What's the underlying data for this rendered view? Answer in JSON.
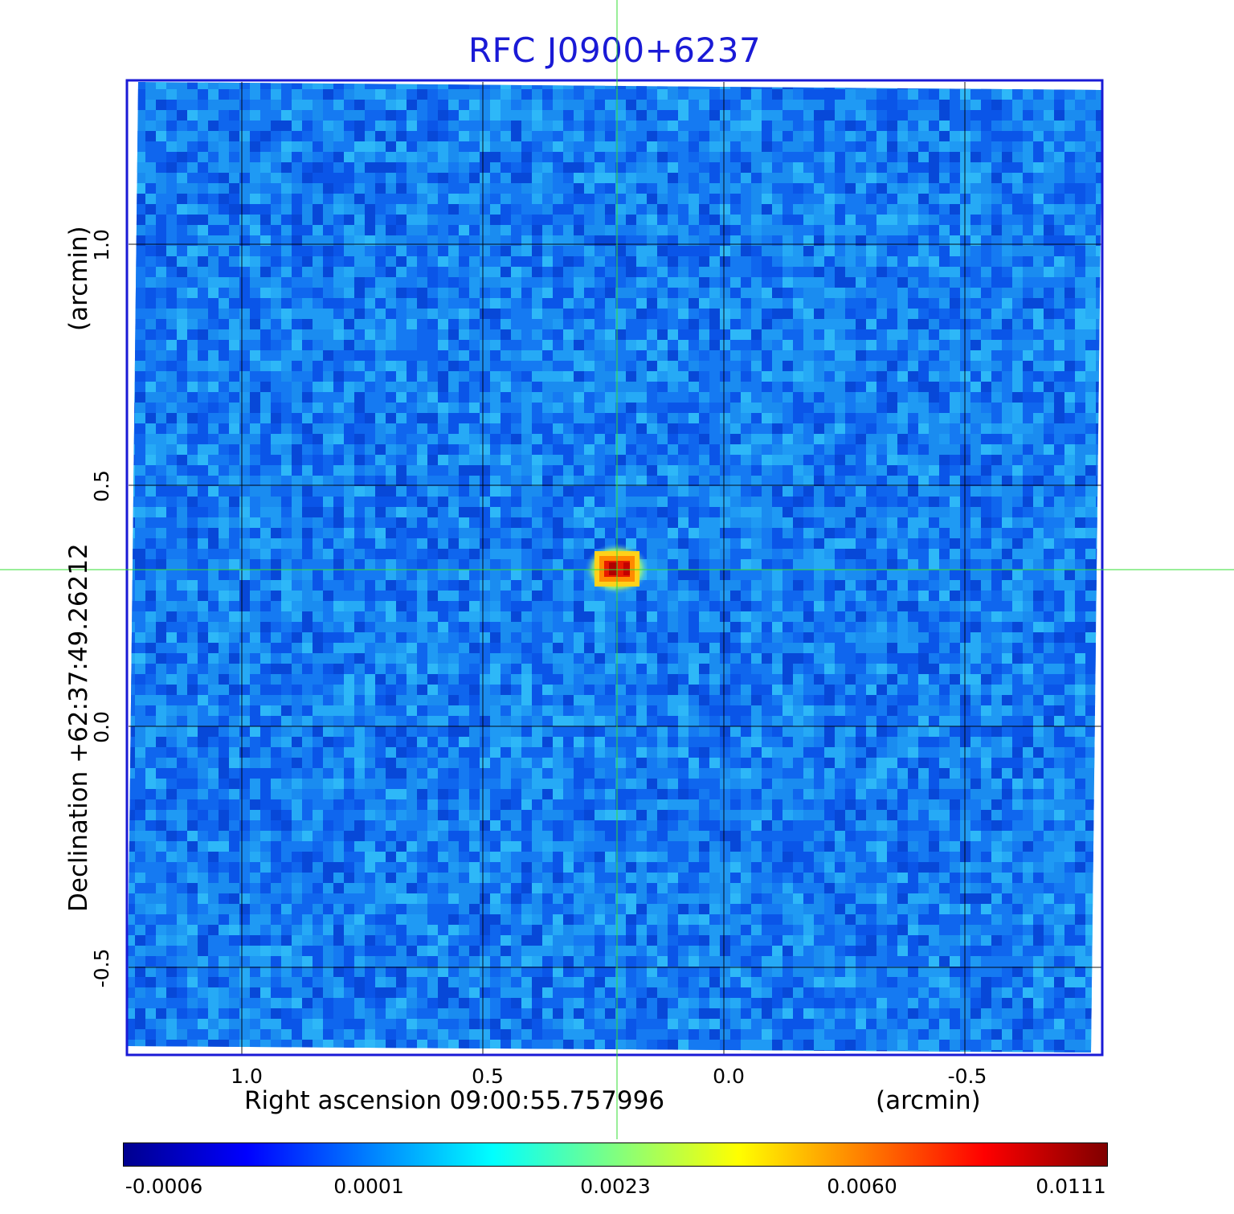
{
  "title": "RFC J0900+6237",
  "image": {
    "kind": "radio-continuum-map",
    "colormap": "jet",
    "source_shown": "compact bright source near the crosshair",
    "crosshair_color": "#33dd33",
    "frame_color": "#1a1ad6",
    "grid_color": "#000000"
  },
  "x_axis": {
    "label": "Right ascension  09:00:55.757996",
    "unit": "(arcmin)",
    "ticks": [
      "1.0",
      "0.5",
      "0.0",
      "-0.5"
    ]
  },
  "y_axis": {
    "label": "Declination  +62:37:49.26212",
    "unit": "(arcmin)",
    "ticks": [
      "1.0",
      "0.5",
      "0.0",
      "-0.5"
    ]
  },
  "colorbar": {
    "ticks": [
      "-0.0006",
      "0.0001",
      "0.0023",
      "0.0060",
      "0.0111"
    ],
    "colors": [
      "#00008f",
      "#0000ff",
      "#0080ff",
      "#00ffff",
      "#80ff80",
      "#ffff00",
      "#ff8000",
      "#ff0000",
      "#800000"
    ]
  }
}
